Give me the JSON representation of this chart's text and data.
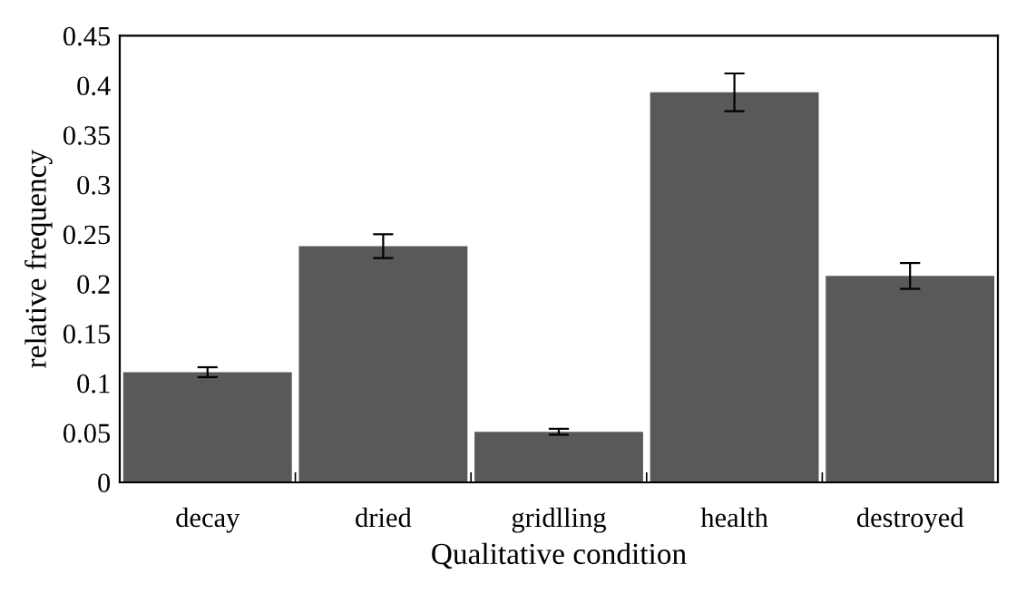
{
  "chart_data": {
    "type": "bar",
    "xlabel": "Qualitative condition",
    "ylabel": "relative frequency",
    "categories": [
      "decay",
      "dried",
      "gridlling",
      "health",
      "destroyed"
    ],
    "values": [
      0.111,
      0.238,
      0.051,
      0.393,
      0.208
    ],
    "errors": [
      0.005,
      0.012,
      0.003,
      0.019,
      0.013
    ],
    "color": "#595959",
    "ylim": [
      0,
      0.45
    ],
    "yticks": [
      {
        "value": 0,
        "label": "0"
      },
      0.05,
      0.1,
      0.15,
      0.2,
      0.25,
      0.3,
      0.35,
      0.4,
      0.45
    ],
    "grid": false,
    "legend": false
  }
}
